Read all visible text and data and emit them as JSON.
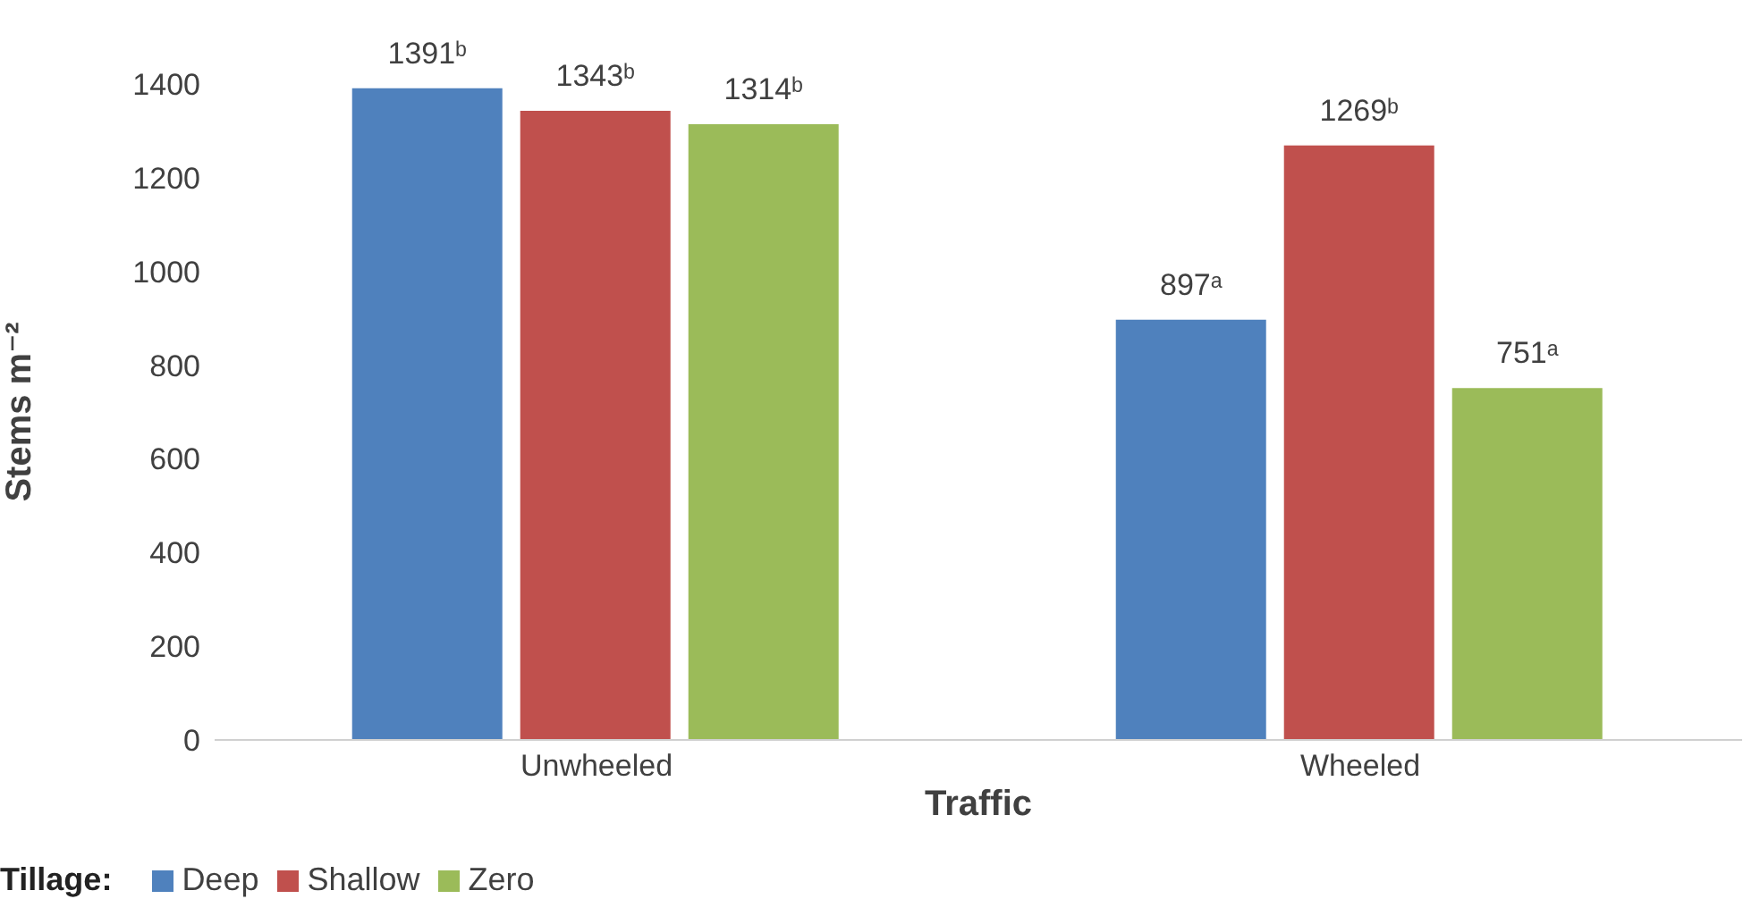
{
  "chart_data": {
    "type": "bar",
    "xlabel": "Traffic",
    "ylabel": "Stems m⁻²",
    "legend_title": "Tillage:",
    "categories": [
      "Unwheeled",
      "Wheeled"
    ],
    "series": [
      {
        "name": "Deep",
        "color": "#4f81bd",
        "values": [
          1391,
          897
        ],
        "value_labels": [
          "1391ᵇ",
          "897ᵃ"
        ]
      },
      {
        "name": "Shallow",
        "color": "#c0504d",
        "values": [
          1343,
          1269
        ],
        "value_labels": [
          "1343ᵇ",
          "1269ᵇ"
        ]
      },
      {
        "name": "Zero",
        "color": "#9bbb59",
        "values": [
          1314,
          751
        ],
        "value_labels": [
          "1314ᵇ",
          "751ᵃ"
        ]
      }
    ],
    "ylim": [
      0,
      1400
    ],
    "yticks": [
      0,
      200,
      400,
      600,
      800,
      1000,
      1200,
      1400
    ],
    "grid": false,
    "legend": "bottom left"
  }
}
